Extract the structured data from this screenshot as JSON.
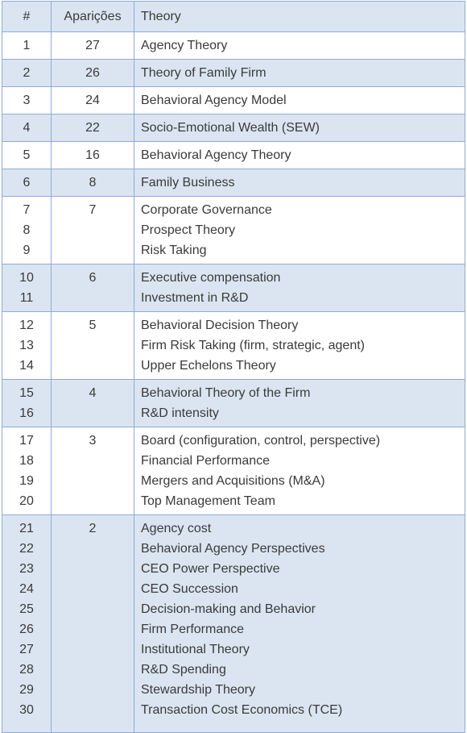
{
  "table": {
    "headers": [
      "#",
      "Aparições",
      "Theory"
    ],
    "groups": [
      {
        "numbers": [
          1
        ],
        "count": 27,
        "theories": [
          "Agency Theory"
        ]
      },
      {
        "numbers": [
          2
        ],
        "count": 26,
        "theories": [
          "Theory of Family Firm"
        ]
      },
      {
        "numbers": [
          3
        ],
        "count": 24,
        "theories": [
          "Behavioral Agency Model"
        ]
      },
      {
        "numbers": [
          4
        ],
        "count": 22,
        "theories": [
          "Socio-Emotional Wealth (SEW)"
        ]
      },
      {
        "numbers": [
          5
        ],
        "count": 16,
        "theories": [
          "Behavioral Agency Theory"
        ]
      },
      {
        "numbers": [
          6
        ],
        "count": 8,
        "theories": [
          "Family Business"
        ]
      },
      {
        "numbers": [
          7,
          8,
          9
        ],
        "count": 7,
        "theories": [
          "Corporate Governance",
          "Prospect Theory",
          "Risk Taking"
        ]
      },
      {
        "numbers": [
          10,
          11
        ],
        "count": 6,
        "theories": [
          "Executive compensation",
          "Investment in R&D"
        ]
      },
      {
        "numbers": [
          12,
          13,
          14
        ],
        "count": 5,
        "theories": [
          "Behavioral Decision Theory",
          "Firm Risk Taking (firm, strategic, agent)",
          "Upper Echelons Theory"
        ]
      },
      {
        "numbers": [
          15,
          16
        ],
        "count": 4,
        "theories": [
          "Behavioral Theory of the Firm",
          "R&D intensity"
        ]
      },
      {
        "numbers": [
          17,
          18,
          19,
          20
        ],
        "count": 3,
        "theories": [
          "Board (configuration, control, perspective)",
          "Financial Performance",
          "Mergers and Acquisitions (M&A)",
          "Top Management Team"
        ]
      },
      {
        "numbers": [
          21,
          22,
          23,
          24,
          25,
          26,
          27,
          28,
          29,
          30
        ],
        "count": 2,
        "theories": [
          "Agency cost",
          "Behavioral Agency Perspectives",
          "CEO Power Perspective",
          "CEO Succession",
          "Decision-making and Behavior",
          "Firm Performance",
          "Institutional Theory",
          "R&D Spending",
          "Stewardship Theory",
          "Transaction Cost Economics (TCE)"
        ]
      }
    ]
  }
}
